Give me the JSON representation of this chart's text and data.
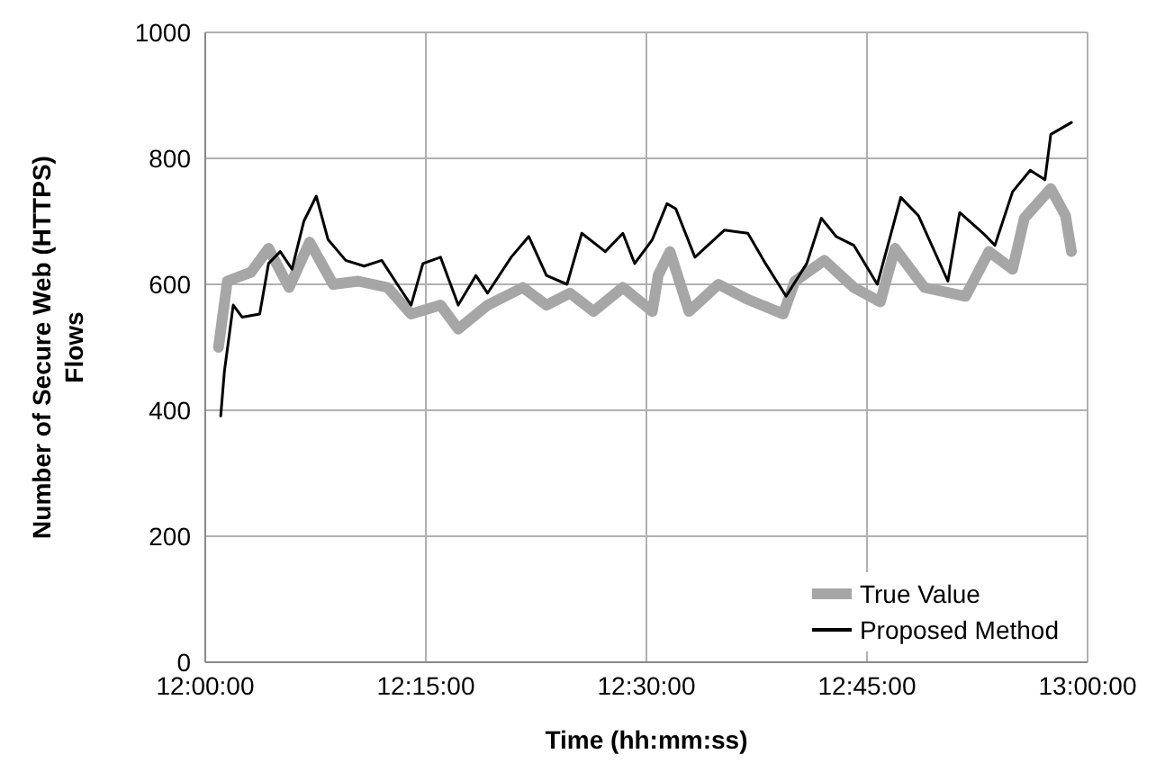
{
  "chart_data": {
    "type": "line",
    "xlabel": "Time (hh:mm:ss)",
    "ylabel": "Number of Secure Web (HTTPS) Flows",
    "xlim": [
      12,
      13
    ],
    "xticks": [
      {
        "value": 12,
        "label": "12:00:00"
      },
      {
        "value": 12.25,
        "label": "12:15:00"
      },
      {
        "value": 12.5,
        "label": "12:30:00"
      },
      {
        "value": 12.75,
        "label": "12:45:00"
      },
      {
        "value": 13,
        "label": "13:00:00"
      }
    ],
    "ylim": [
      0,
      1000
    ],
    "yticks": [
      0,
      200,
      400,
      600,
      800,
      1000
    ],
    "grid": true,
    "legend": "bottom right",
    "marker": "none",
    "line_style": "solid",
    "series": [
      {
        "name": "True Value",
        "color": "#a6a6a6",
        "x": [
          12.015,
          12.025,
          12.0517,
          12.0717,
          12.095,
          12.1183,
          12.145,
          12.1733,
          12.2067,
          12.2333,
          12.2667,
          12.2867,
          12.32,
          12.36,
          12.3867,
          12.4133,
          12.44,
          12.4733,
          12.5067,
          12.5133,
          12.5267,
          12.5483,
          12.5817,
          12.615,
          12.655,
          12.6683,
          12.7017,
          12.735,
          12.765,
          12.7817,
          12.815,
          12.8617,
          12.8883,
          12.915,
          12.9283,
          12.9583,
          12.975,
          12.9817
        ],
        "values": [
          500,
          605,
          619,
          657,
          595,
          667,
          600,
          605,
          595,
          553,
          567,
          529,
          567,
          595,
          567,
          586,
          557,
          595,
          557,
          614,
          652,
          557,
          600,
          576,
          553,
          605,
          638,
          595,
          572,
          657,
          595,
          581,
          652,
          624,
          705,
          752,
          709,
          652
        ]
      },
      {
        "name": "Proposed Method",
        "color": "#000000",
        "x": [
          12.0175,
          12.0217,
          12.0317,
          12.0417,
          12.0617,
          12.0717,
          12.085,
          12.0983,
          12.1117,
          12.1258,
          12.1392,
          12.1592,
          12.18,
          12.2,
          12.22,
          12.2333,
          12.2467,
          12.2667,
          12.2867,
          12.3067,
          12.32,
          12.3467,
          12.3667,
          12.3867,
          12.41,
          12.4267,
          12.4533,
          12.4733,
          12.4867,
          12.5067,
          12.5233,
          12.5333,
          12.555,
          12.5883,
          12.615,
          12.635,
          12.6583,
          12.6817,
          12.6983,
          12.715,
          12.735,
          12.7617,
          12.7883,
          12.8083,
          12.8417,
          12.855,
          12.8817,
          12.895,
          12.915,
          12.935,
          12.9517,
          12.9583,
          12.9817
        ],
        "values": [
          391,
          462,
          567,
          548,
          553,
          633,
          652,
          624,
          700,
          740,
          671,
          638,
          629,
          638,
          595,
          567,
          633,
          643,
          567,
          614,
          586,
          643,
          676,
          614,
          600,
          681,
          652,
          681,
          633,
          671,
          728,
          720,
          643,
          686,
          681,
          633,
          581,
          633,
          705,
          676,
          662,
          600,
          738,
          709,
          605,
          714,
          681,
          662,
          747,
          781,
          766,
          838,
          857
        ]
      }
    ]
  }
}
